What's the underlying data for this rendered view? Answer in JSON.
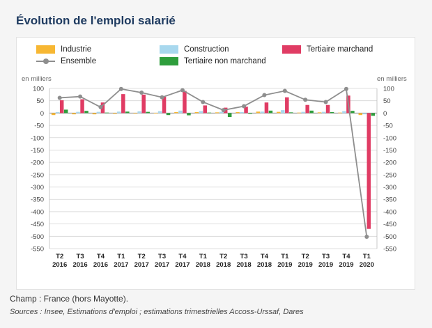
{
  "title": "Évolution de l'emploi salarié",
  "footer": {
    "champ": "Champ : France (hors Mayotte).",
    "sources": "Sources : Insee, Estimations d'emploi ; estimations trimestrielles Accoss-Urssaf, Dares"
  },
  "colors": {
    "industrie": "#f7b733",
    "construction": "#a8d8ee",
    "tertiaire_marchand": "#e03c64",
    "tertiaire_non_marchand": "#2e9e3c",
    "ensemble": "#8e8e8e"
  },
  "chart_data": {
    "type": "bar",
    "title": "",
    "ylabel_left": "en milliers",
    "ylabel_right": "en milliers",
    "ylim": [
      -550,
      100
    ],
    "yticks": [
      100,
      50,
      0,
      -50,
      -100,
      -150,
      -200,
      -250,
      -300,
      -350,
      -400,
      -450,
      -500,
      -550
    ],
    "grid": true,
    "legend_position": "top",
    "categories": [
      [
        "T2",
        "2016"
      ],
      [
        "T3",
        "2016"
      ],
      [
        "T4",
        "2016"
      ],
      [
        "T1",
        "2017"
      ],
      [
        "T2",
        "2017"
      ],
      [
        "T3",
        "2017"
      ],
      [
        "T4",
        "2017"
      ],
      [
        "T1",
        "2018"
      ],
      [
        "T2",
        "2018"
      ],
      [
        "T3",
        "2018"
      ],
      [
        "T4",
        "2018"
      ],
      [
        "T1",
        "2019"
      ],
      [
        "T2",
        "2019"
      ],
      [
        "T3",
        "2019"
      ],
      [
        "T4",
        "2019"
      ],
      [
        "T1",
        "2020"
      ]
    ],
    "series": [
      {
        "name": "Industrie",
        "type": "bar",
        "color_key": "industrie",
        "values": [
          -8,
          -5,
          -5,
          -3,
          -2,
          1,
          4,
          4,
          3,
          4,
          6,
          5,
          2,
          3,
          2,
          -8
        ]
      },
      {
        "name": "Construction",
        "type": "bar",
        "color_key": "construction",
        "values": [
          4,
          5,
          5,
          6,
          7,
          8,
          10,
          8,
          5,
          4,
          6,
          12,
          5,
          5,
          8,
          -5
        ]
      },
      {
        "name": "Tertiaire marchand",
        "type": "bar",
        "color_key": "tertiaire_marchand",
        "values": [
          52,
          56,
          43,
          77,
          75,
          66,
          90,
          31,
          22,
          26,
          43,
          64,
          33,
          33,
          71,
          -470
        ]
      },
      {
        "name": "Tertiaire non marchand",
        "type": "bar",
        "color_key": "tertiaire_non_marchand",
        "values": [
          14,
          9,
          2,
          6,
          5,
          -8,
          -9,
          2,
          -16,
          -3,
          10,
          3,
          10,
          4,
          9,
          -11
        ]
      },
      {
        "name": "Ensemble",
        "type": "line",
        "color_key": "ensemble",
        "values": [
          62,
          67,
          24,
          98,
          83,
          64,
          93,
          45,
          12,
          28,
          73,
          90,
          54,
          45,
          98,
          -502
        ]
      }
    ]
  }
}
